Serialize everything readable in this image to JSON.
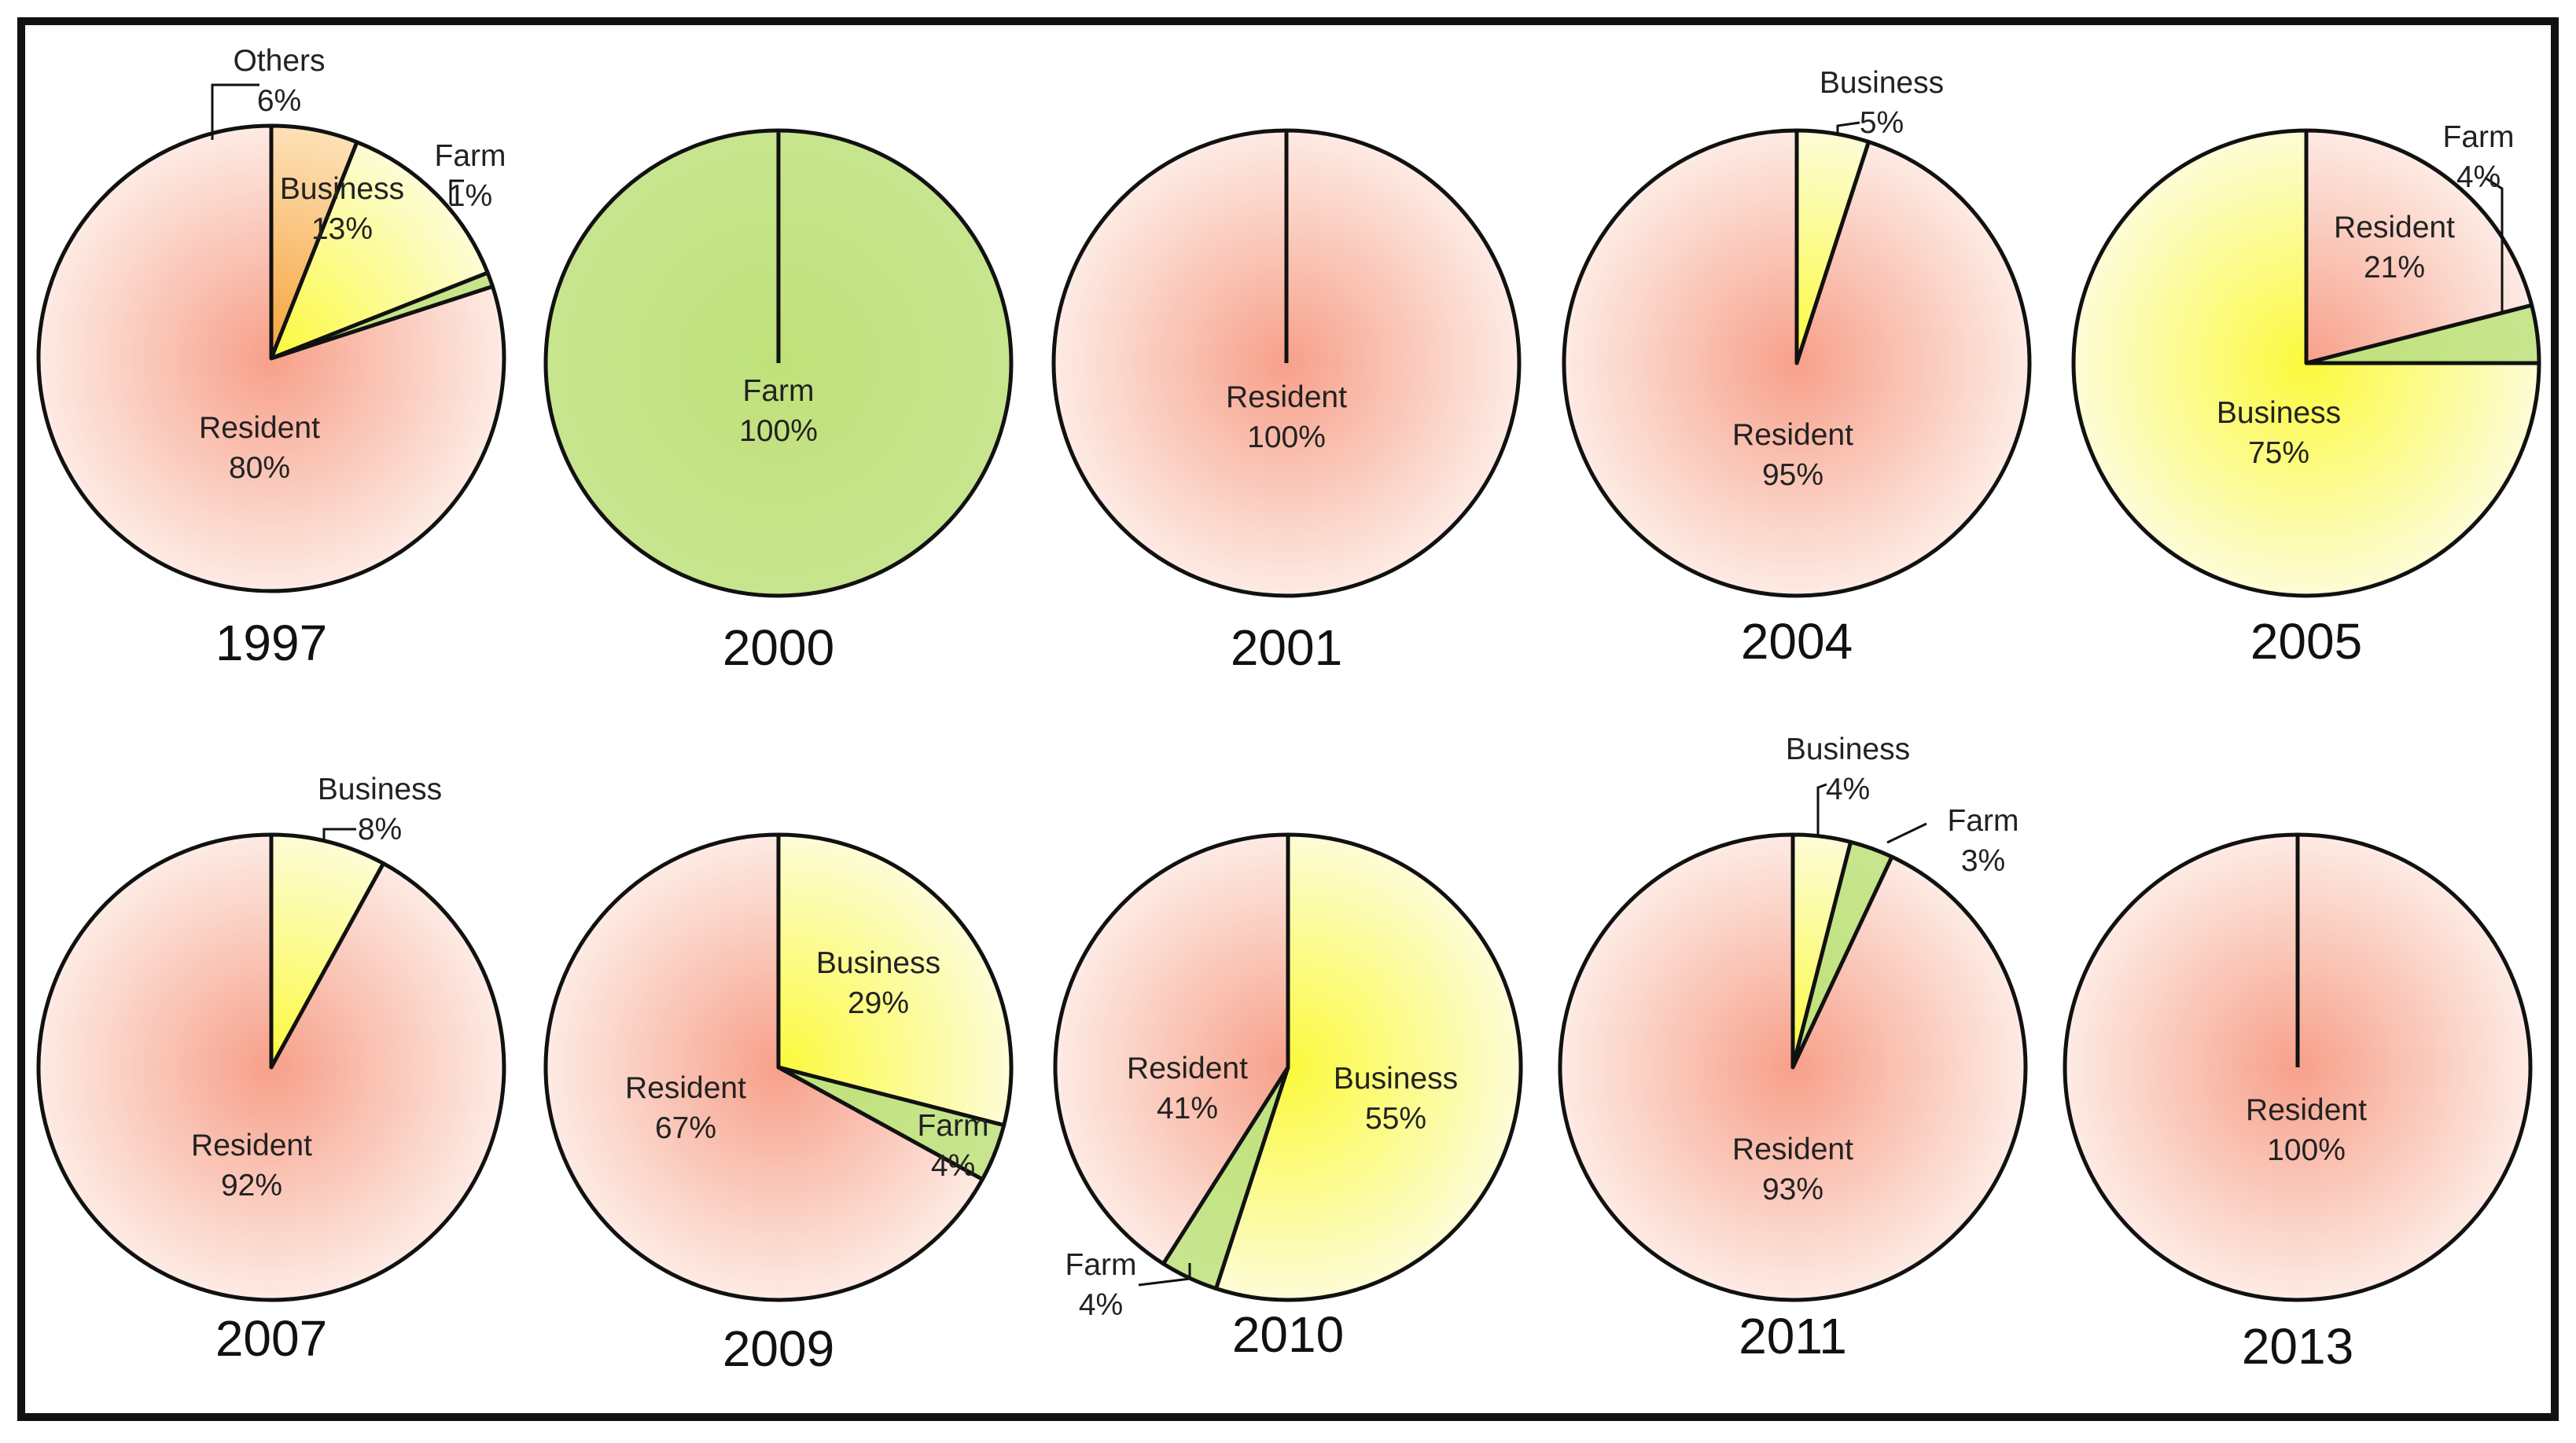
{
  "chart_data": [
    {
      "type": "pie",
      "title": "1997",
      "slices": [
        {
          "name": "Others",
          "value": 6,
          "label": "Others",
          "pct": "6%"
        },
        {
          "name": "Business",
          "value": 13,
          "label": "Business",
          "pct": "13%"
        },
        {
          "name": "Farm",
          "value": 1,
          "label": "Farm",
          "pct": "1%"
        },
        {
          "name": "Resident",
          "value": 80,
          "label": "Resident",
          "pct": "80%"
        }
      ]
    },
    {
      "type": "pie",
      "title": "2000",
      "slices": [
        {
          "name": "Farm",
          "value": 100,
          "label": "Farm",
          "pct": "100%"
        }
      ]
    },
    {
      "type": "pie",
      "title": "2001",
      "slices": [
        {
          "name": "Resident",
          "value": 100,
          "label": "Resident",
          "pct": "100%"
        }
      ]
    },
    {
      "type": "pie",
      "title": "2004",
      "slices": [
        {
          "name": "Business",
          "value": 5,
          "label": "Business",
          "pct": "5%"
        },
        {
          "name": "Resident",
          "value": 95,
          "label": "Resident",
          "pct": "95%"
        }
      ]
    },
    {
      "type": "pie",
      "title": "2005",
      "slices": [
        {
          "name": "Resident",
          "value": 21,
          "label": "Resident",
          "pct": "21%"
        },
        {
          "name": "Farm",
          "value": 4,
          "label": "Farm",
          "pct": "4%"
        },
        {
          "name": "Business",
          "value": 75,
          "label": "Business",
          "pct": "75%"
        }
      ]
    },
    {
      "type": "pie",
      "title": "2007",
      "slices": [
        {
          "name": "Business",
          "value": 8,
          "label": "Business",
          "pct": "8%"
        },
        {
          "name": "Resident",
          "value": 92,
          "label": "Resident",
          "pct": "92%"
        }
      ]
    },
    {
      "type": "pie",
      "title": "2009",
      "slices": [
        {
          "name": "Business",
          "value": 29,
          "label": "Business",
          "pct": "29%"
        },
        {
          "name": "Farm",
          "value": 4,
          "label": "Farm",
          "pct": "4%"
        },
        {
          "name": "Resident",
          "value": 67,
          "label": "Resident",
          "pct": "67%"
        }
      ]
    },
    {
      "type": "pie",
      "title": "2010",
      "slices": [
        {
          "name": "Business",
          "value": 55,
          "label": "Business",
          "pct": "55%"
        },
        {
          "name": "Farm",
          "value": 4,
          "label": "Farm",
          "pct": "4%"
        },
        {
          "name": "Resident",
          "value": 41,
          "label": "Resident",
          "pct": "41%"
        }
      ]
    },
    {
      "type": "pie",
      "title": "2011",
      "slices": [
        {
          "name": "Business",
          "value": 4,
          "label": "Business",
          "pct": "4%"
        },
        {
          "name": "Farm",
          "value": 3,
          "label": "Farm",
          "pct": "3%"
        },
        {
          "name": "Resident",
          "value": 93,
          "label": "Resident",
          "pct": "93%"
        }
      ]
    },
    {
      "type": "pie",
      "title": "2013",
      "slices": [
        {
          "name": "Resident",
          "value": 100,
          "label": "Resident",
          "pct": "100%"
        }
      ]
    }
  ],
  "colors": {
    "Resident": {
      "center": "#f7a08a",
      "edge": "#fdebe4"
    },
    "Business": {
      "center": "#fbfa3c",
      "edge": "#fdfcd6"
    },
    "Farm": {
      "center": "#bfe17a",
      "edge": "#c7e58e"
    },
    "Others": {
      "center": "#f5a33a",
      "edge": "#fde1b8"
    },
    "outline": "#111111",
    "frame": "#111111"
  }
}
